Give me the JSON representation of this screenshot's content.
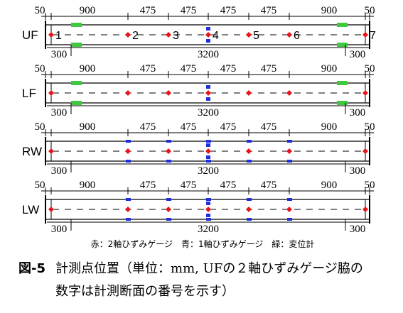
{
  "panels": [
    {
      "label": "UF",
      "gauges": [
        {
          "type": "two-axis",
          "section": "1"
        },
        {
          "type": "two-axis",
          "section": "2"
        },
        {
          "type": "two-axis",
          "section": "3"
        },
        {
          "type": "two-axis",
          "section": "4"
        },
        {
          "type": "two-axis",
          "section": "5"
        },
        {
          "type": "two-axis",
          "section": "6"
        },
        {
          "type": "two-axis",
          "section": "7"
        }
      ],
      "mid_marker": "two-axis+one-axis",
      "displacement_ends": true
    },
    {
      "label": "LF",
      "gauges": [
        {
          "type": "two-axis"
        },
        {
          "type": "two-axis"
        },
        {
          "type": "two-axis"
        },
        {
          "type": "two-axis"
        },
        {
          "type": "two-axis"
        },
        {
          "type": "two-axis"
        },
        {
          "type": "two-axis"
        }
      ],
      "mid_marker": "two-axis+one-axis",
      "displacement_ends": true
    },
    {
      "label": "RW",
      "gauges": [
        {
          "type": "two-axis"
        },
        {
          "type": "two-axis+one-axis"
        },
        {
          "type": "two-axis+one-axis"
        },
        {
          "type": "two-axis+one-axis"
        },
        {
          "type": "two-axis+one-axis"
        },
        {
          "type": "two-axis+one-axis"
        },
        {
          "type": "two-axis"
        }
      ],
      "mid_marker": "two-axis+one-axis",
      "displacement_ends": false
    },
    {
      "label": "LW",
      "gauges": [
        {
          "type": "two-axis"
        },
        {
          "type": "two-axis+one-axis"
        },
        {
          "type": "two-axis+one-axis"
        },
        {
          "type": "two-axis+one-axis"
        },
        {
          "type": "two-axis+one-axis"
        },
        {
          "type": "two-axis+one-axis"
        },
        {
          "type": "two-axis"
        }
      ],
      "mid_marker": "two-axis+one-axis",
      "displacement_ends": false
    }
  ],
  "dimensions_top": [
    "50",
    "900",
    "475",
    "475",
    "475",
    "475",
    "900",
    "50"
  ],
  "dimensions_bottom": [
    "300",
    "3200",
    "300"
  ],
  "legend": "赤：2軸ひずみゲージ　青：1軸ひずみゲージ　緑：変位計",
  "caption": {
    "label": "図-5",
    "line1": "計測点位置（単位：mm,  UFの２軸ひずみゲージ脇の",
    "line2": "数字は計測断面の番号を示す）"
  },
  "colors": {
    "two_axis_gauge": "#e8141a",
    "one_axis_gauge": "#1f2ee0",
    "displacement_meter": "#3ec93e",
    "line": "#000000"
  }
}
